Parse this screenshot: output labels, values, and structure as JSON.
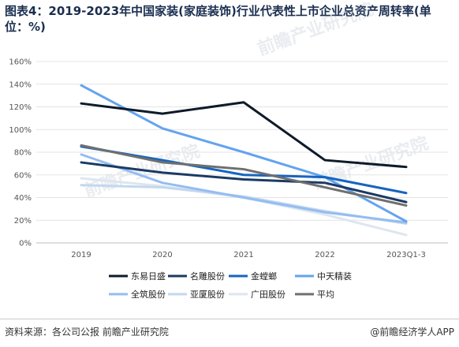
{
  "title": "图表4：2019-2023年中国家装(家庭装饰)行业代表性上市企业总资产周转率(单位：%)",
  "footer": {
    "source": "资料来源：各公司公报 前瞻产业研究院",
    "brand": "@前瞻经济学人APP"
  },
  "watermark": "前瞻产业研究院",
  "chart_data": {
    "type": "line",
    "categories": [
      "2019",
      "2020",
      "2021",
      "2022",
      "2023Q1-3"
    ],
    "ylim": [
      0,
      160
    ],
    "yticks": [
      0,
      20,
      40,
      60,
      80,
      100,
      120,
      140,
      160
    ],
    "ytick_labels": [
      "0%",
      "20%",
      "40%",
      "60%",
      "80%",
      "100%",
      "120%",
      "140%",
      "160%"
    ],
    "grid": true,
    "legend_position": "bottom",
    "series": [
      {
        "name": "东易日盛",
        "color": "#0d1b2a",
        "values": [
          123,
          114,
          124,
          73,
          67
        ]
      },
      {
        "name": "名雕股份",
        "color": "#1b3a63",
        "values": [
          71,
          62,
          56,
          53,
          36
        ]
      },
      {
        "name": "金螳螂",
        "color": "#1565c0",
        "values": [
          85,
          73,
          60,
          58,
          44
        ]
      },
      {
        "name": "中天精装",
        "color": "#64a3f0",
        "values": [
          139,
          101,
          80,
          58,
          19
        ]
      },
      {
        "name": "全筑股份",
        "color": "#93bdf2",
        "values": [
          78,
          53,
          40,
          27,
          18
        ]
      },
      {
        "name": "亚厦股份",
        "color": "#c3d7ef",
        "values": [
          51,
          49,
          41,
          28,
          17
        ]
      },
      {
        "name": "广田股份",
        "color": "#dde6f0",
        "values": [
          57,
          50,
          40,
          25,
          7
        ]
      },
      {
        "name": "平均",
        "color": "#6f6f6f",
        "values": [
          86,
          71,
          65,
          49,
          33
        ]
      }
    ]
  }
}
